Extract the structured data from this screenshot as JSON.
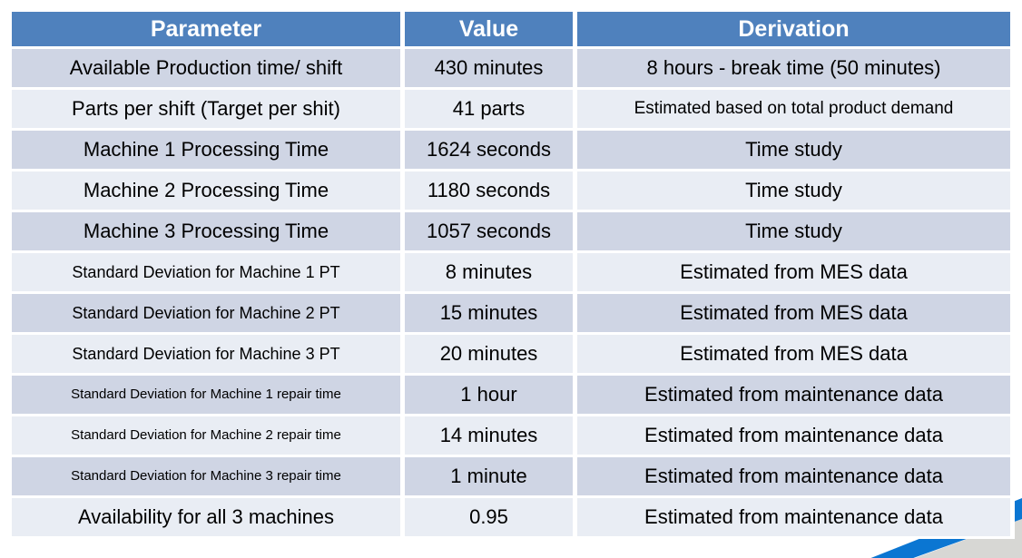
{
  "table": {
    "columns": [
      "Parameter",
      "Value",
      "Derivation"
    ],
    "rows": [
      {
        "parameter": "Available Production time/ shift",
        "value": "430 minutes",
        "derivation": "8 hours - break time (50 minutes)"
      },
      {
        "parameter": "Parts per shift (Target per shit)",
        "value": "41 parts",
        "derivation": "Estimated based on total product demand"
      },
      {
        "parameter": "Machine 1 Processing Time",
        "value": "1624 seconds",
        "derivation": "Time study"
      },
      {
        "parameter": "Machine 2 Processing Time",
        "value": "1180 seconds",
        "derivation": "Time study"
      },
      {
        "parameter": "Machine 3 Processing Time",
        "value": "1057 seconds",
        "derivation": "Time study"
      },
      {
        "parameter": "Standard Deviation for Machine 1 PT",
        "value": "8 minutes",
        "derivation": "Estimated from MES data"
      },
      {
        "parameter": "Standard Deviation for Machine 2 PT",
        "value": "15 minutes",
        "derivation": "Estimated from MES data"
      },
      {
        "parameter": "Standard Deviation for Machine 3 PT",
        "value": "20 minutes",
        "derivation": "Estimated from MES data"
      },
      {
        "parameter": "Standard Deviation for Machine 1 repair time",
        "value": "1 hour",
        "derivation": "Estimated from maintenance data"
      },
      {
        "parameter": "Standard Deviation for Machine 2 repair time",
        "value": "14 minutes",
        "derivation": "Estimated from maintenance data"
      },
      {
        "parameter": "Standard Deviation for Machine 3 repair time",
        "value": "1 minute",
        "derivation": "Estimated from maintenance data"
      },
      {
        "parameter": "Availability for all 3 machines",
        "value": "0.95",
        "derivation": "Estimated from maintenance data"
      }
    ],
    "colors": {
      "header_bg": "#4F81BD",
      "header_text": "#FFFFFF",
      "row_band_dark": "#CFD5E4",
      "row_band_light": "#E9EDF4",
      "cell_text": "#000000"
    }
  },
  "decoration": {
    "ribbon_blue": "#0B76D2",
    "ribbon_gray": "#D7D7D4"
  }
}
